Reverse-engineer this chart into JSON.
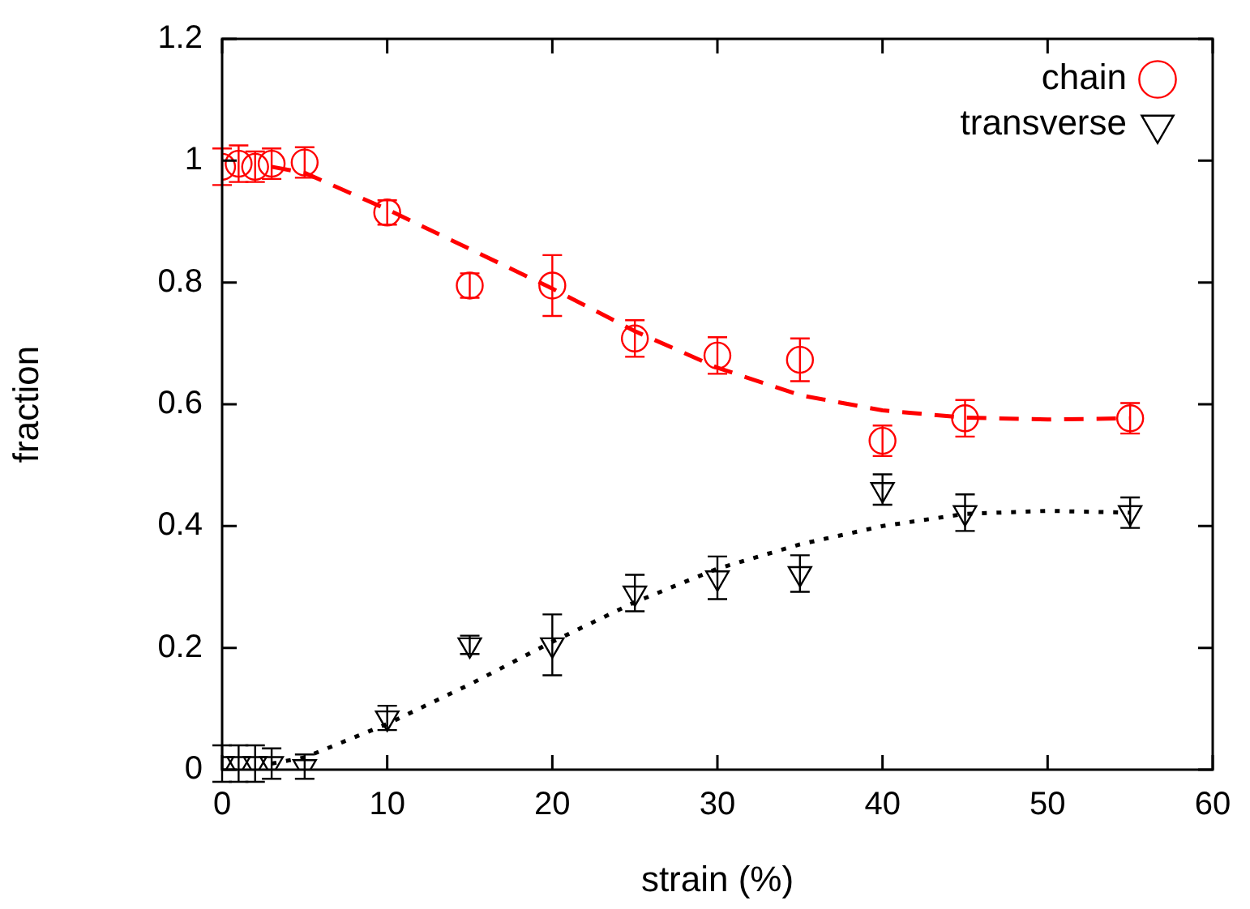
{
  "chart_data": {
    "type": "scatter",
    "xlabel": "strain (%)",
    "ylabel": "fraction",
    "xlim": [
      0,
      60
    ],
    "xticks": [
      0,
      10,
      20,
      30,
      40,
      50,
      60
    ],
    "ylim": [
      0,
      1.2
    ],
    "yticks": [
      0,
      0.2,
      0.4,
      0.6,
      0.8,
      1,
      1.2
    ],
    "grid": false,
    "legend": "top right",
    "series": [
      {
        "name": "chain",
        "color": "#ff0000",
        "marker": "circle",
        "x": [
          0,
          1,
          2,
          3,
          5,
          10,
          15,
          20,
          25,
          30,
          35,
          40,
          45,
          55
        ],
        "values": [
          0.99,
          0.995,
          0.99,
          0.995,
          0.997,
          0.915,
          0.795,
          0.795,
          0.708,
          0.68,
          0.673,
          0.54,
          0.577,
          0.577
        ],
        "errors": [
          0.03,
          0.03,
          0.025,
          0.025,
          0.025,
          0.02,
          0.02,
          0.05,
          0.03,
          0.03,
          0.035,
          0.025,
          0.03,
          0.025
        ]
      },
      {
        "name": "transverse",
        "color": "#000000",
        "marker": "triangle",
        "x": [
          0,
          1,
          2,
          3,
          5,
          10,
          15,
          20,
          25,
          30,
          35,
          40,
          45,
          55
        ],
        "values": [
          0.01,
          0.01,
          0.01,
          0.01,
          0.005,
          0.085,
          0.205,
          0.205,
          0.29,
          0.315,
          0.322,
          0.46,
          0.422,
          0.422
        ],
        "errors": [
          0.03,
          0.03,
          0.03,
          0.025,
          0.02,
          0.02,
          0.015,
          0.05,
          0.03,
          0.035,
          0.03,
          0.025,
          0.03,
          0.025
        ]
      },
      {
        "type": "line",
        "color": "#ff0000",
        "line_style": "dashed",
        "marker": "none",
        "x": [
          3,
          5,
          10,
          15,
          20,
          25,
          30,
          35,
          40,
          45,
          50,
          55
        ],
        "values": [
          0.99,
          0.98,
          0.92,
          0.855,
          0.79,
          0.72,
          0.66,
          0.615,
          0.59,
          0.578,
          0.575,
          0.577
        ]
      },
      {
        "type": "line",
        "color": "#000000",
        "line_style": "dotted",
        "marker": "none",
        "x": [
          3,
          5,
          10,
          15,
          20,
          25,
          30,
          35,
          40,
          45,
          50,
          55
        ],
        "values": [
          0.01,
          0.02,
          0.075,
          0.14,
          0.21,
          0.275,
          0.33,
          0.37,
          0.4,
          0.42,
          0.425,
          0.422
        ]
      }
    ]
  }
}
